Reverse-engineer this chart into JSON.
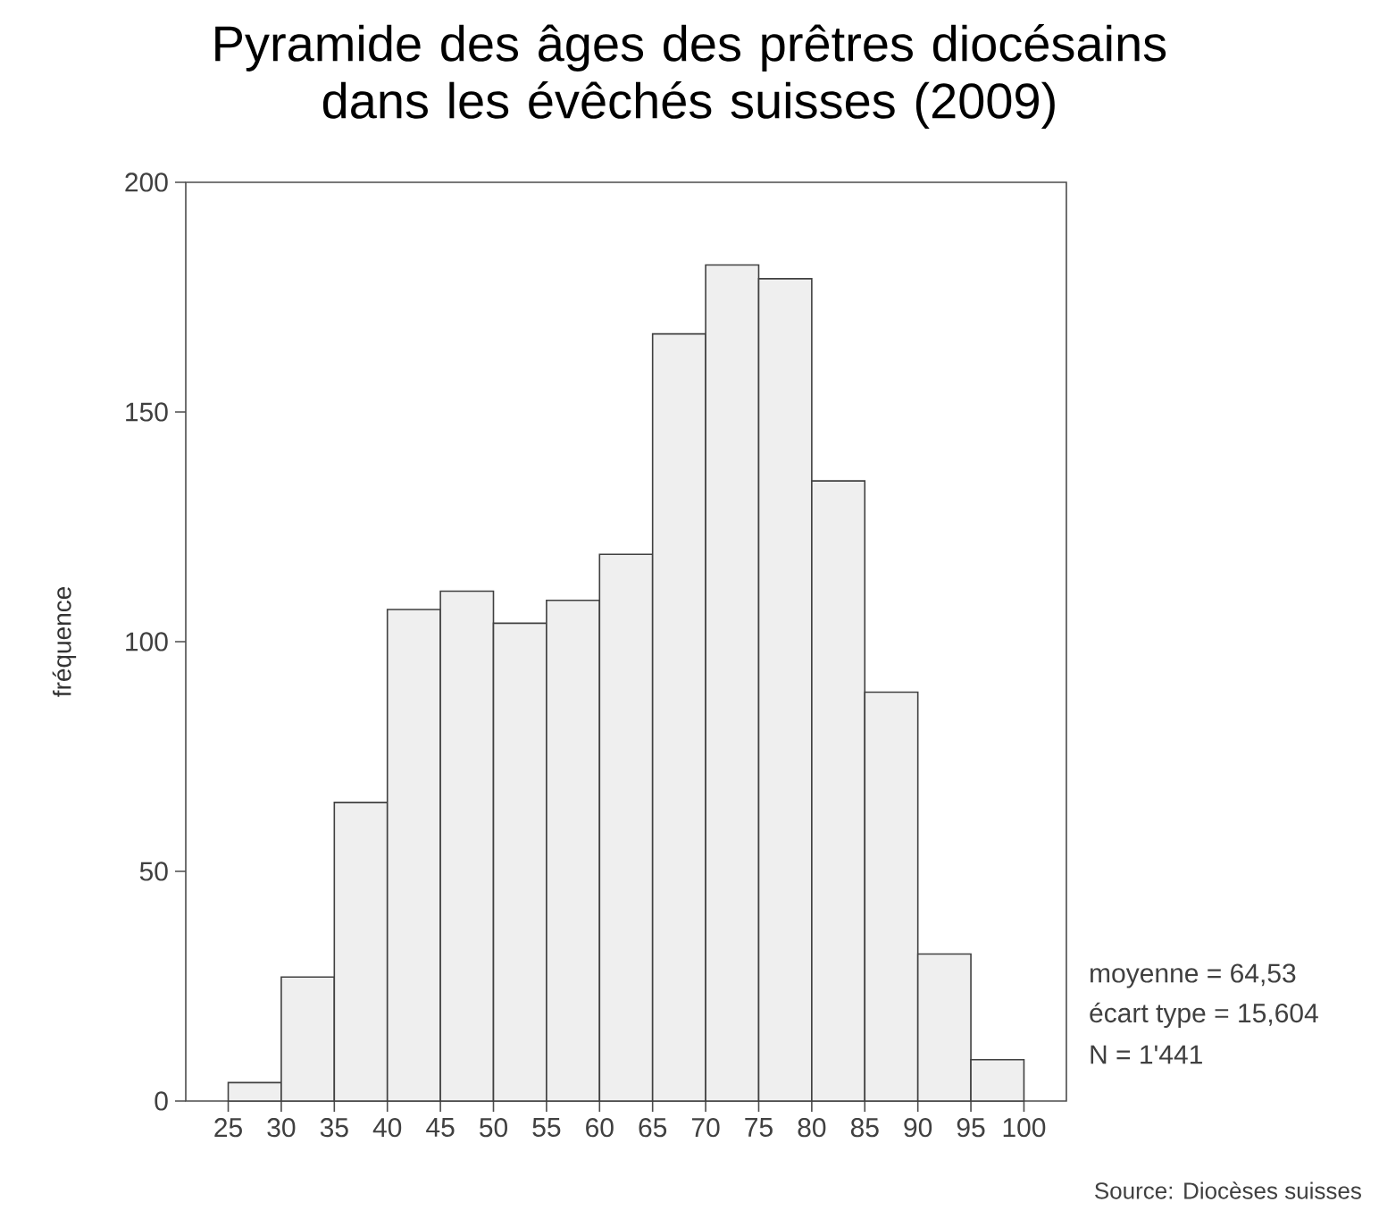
{
  "chart_data": {
    "type": "histogram",
    "title": "Pyramide des âges des prêtres diocésains dans les évêchés suisses (2009)",
    "ylabel": "fréquence",
    "bins": [
      25,
      30,
      35,
      40,
      45,
      50,
      55,
      60,
      65,
      70,
      75,
      80,
      85,
      90,
      95,
      100
    ],
    "values": [
      4,
      27,
      65,
      107,
      111,
      104,
      109,
      119,
      167,
      182,
      179,
      135,
      89,
      32,
      9
    ],
    "color": "#efefef",
    "xlim": [
      21,
      104
    ],
    "xticks": [
      25,
      30,
      35,
      40,
      45,
      50,
      55,
      60,
      65,
      70,
      75,
      80,
      85,
      90,
      95,
      100
    ],
    "ylim": [
      0,
      200
    ],
    "yticks": [
      0,
      50,
      100,
      150,
      200
    ],
    "annotations": [
      "moyenne = 64,53",
      "écart type = 15,604",
      "N = 1'441",
      "Source: Diocèses suisses"
    ]
  }
}
